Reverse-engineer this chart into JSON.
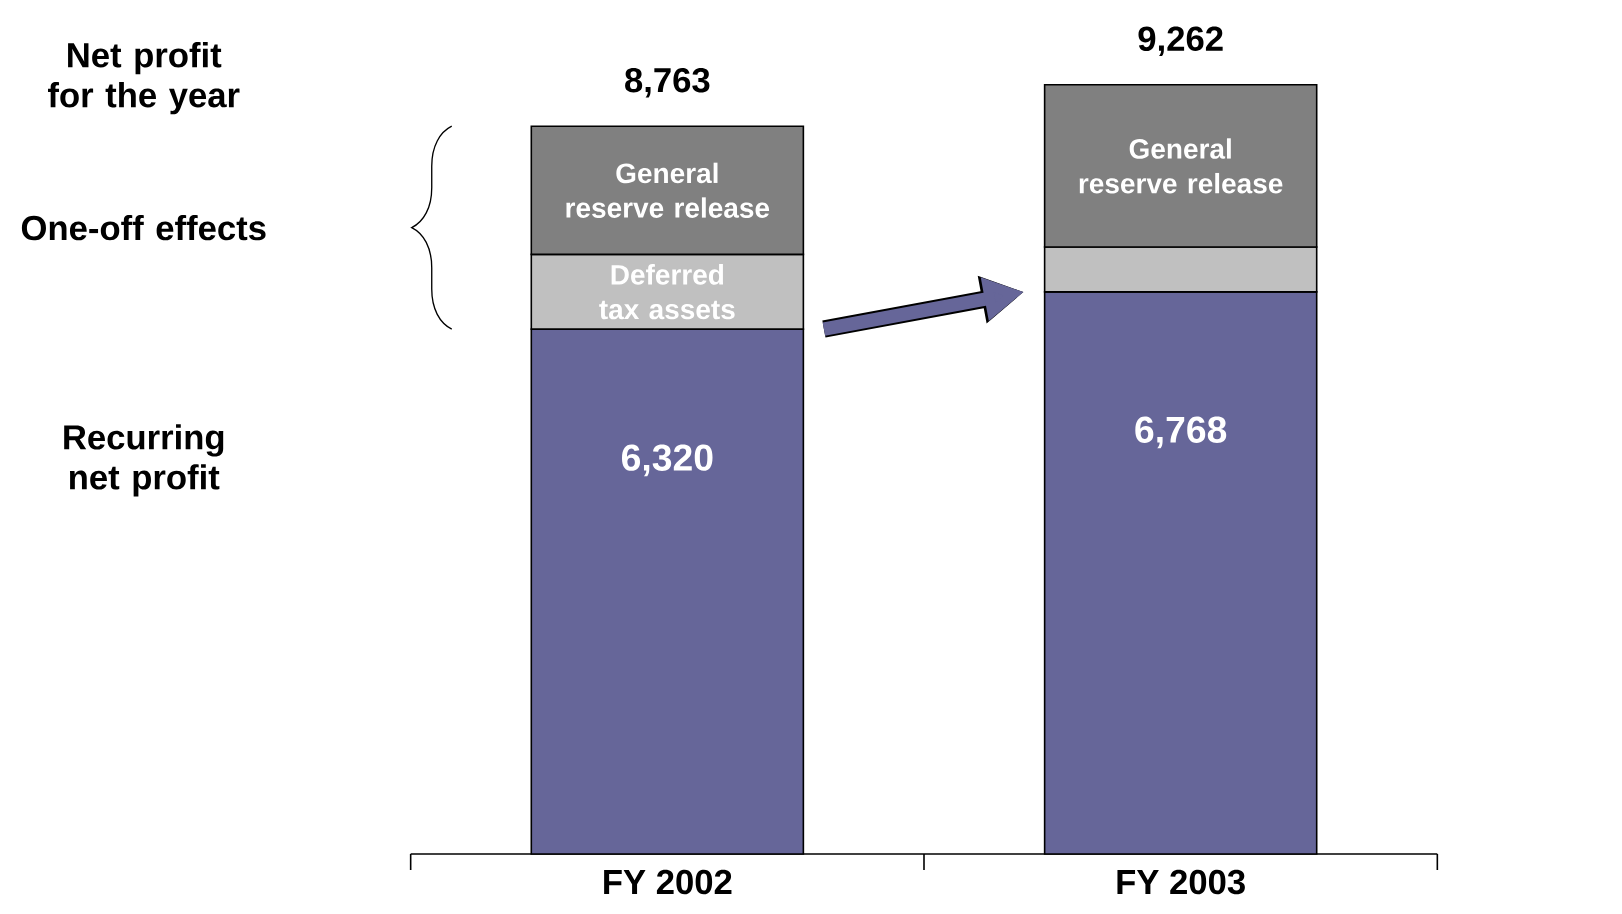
{
  "chart_data": {
    "type": "bar",
    "stacked": true,
    "categories": [
      "FY 2002",
      "FY 2003"
    ],
    "series": [
      {
        "color": "#666699",
        "values": [
          6320,
          6768
        ],
        "value_labels": [
          "6,320",
          "6,768"
        ]
      },
      {
        "name": "Deferred tax assets",
        "color": "#c0c0c0",
        "values": [
          900,
          null
        ]
      },
      {
        "color": "#c0c0c0",
        "values": [
          null,
          540
        ]
      },
      {
        "name": "General reserve release",
        "color": "#808080",
        "values": [
          1543,
          1954
        ]
      }
    ],
    "totals": [
      "8,763",
      "9,262"
    ],
    "annotations": [
      "Net profit for the year",
      "One-off effects",
      "Recurring net profit"
    ]
  }
}
